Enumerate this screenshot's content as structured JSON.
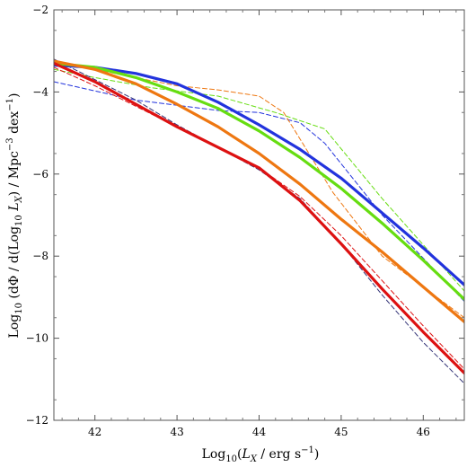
{
  "chart_data": {
    "type": "line",
    "title": "",
    "xlabel": "Log10(LX / erg s−1)",
    "ylabel": "Log10 (dΦ / d(Log10 LX) / Mpc−3 dex−1)",
    "xlim": [
      41.5,
      46.5
    ],
    "ylim": [
      -12,
      -2
    ],
    "xticks": [
      42,
      43,
      44,
      45,
      46
    ],
    "yticks": [
      -12,
      -10,
      -8,
      -6,
      -4,
      -2
    ],
    "grid": false,
    "legend": "none",
    "series": [
      {
        "color": "#2233dd",
        "style": "solid",
        "x": [
          41.5,
          42.0,
          42.5,
          43.0,
          43.5,
          44.0,
          44.5,
          45.0,
          45.5,
          46.0,
          46.5
        ],
        "y": [
          -3.35,
          -3.4,
          -3.55,
          -3.8,
          -4.25,
          -4.8,
          -5.4,
          -6.1,
          -6.95,
          -7.8,
          -8.7
        ]
      },
      {
        "color": "#66dd11",
        "style": "solid",
        "x": [
          41.5,
          42.0,
          42.5,
          43.0,
          43.5,
          44.0,
          44.5,
          45.0,
          45.5,
          46.0,
          46.5
        ],
        "y": [
          -3.3,
          -3.4,
          -3.65,
          -4.0,
          -4.4,
          -4.95,
          -5.6,
          -6.35,
          -7.2,
          -8.1,
          -9.05
        ]
      },
      {
        "color": "#ee7711",
        "style": "solid",
        "x": [
          41.5,
          42.0,
          42.5,
          43.0,
          43.5,
          44.0,
          44.5,
          45.0,
          45.5,
          46.0,
          46.5
        ],
        "y": [
          -3.25,
          -3.45,
          -3.8,
          -4.3,
          -4.85,
          -5.5,
          -6.25,
          -7.1,
          -7.9,
          -8.75,
          -9.6
        ]
      },
      {
        "color": "#dd1111",
        "style": "solid",
        "x": [
          41.5,
          42.0,
          42.5,
          43.0,
          43.5,
          44.0,
          44.5,
          45.0,
          45.5,
          46.0,
          46.5
        ],
        "y": [
          -3.3,
          -3.75,
          -4.3,
          -4.85,
          -5.35,
          -5.85,
          -6.65,
          -7.7,
          -8.8,
          -9.85,
          -10.85
        ]
      },
      {
        "color": "#2233dd",
        "style": "dashed",
        "x": [
          41.5,
          42.5,
          43.5,
          44.0,
          44.5,
          44.8,
          45.5,
          46.5
        ],
        "y": [
          -3.75,
          -4.2,
          -4.45,
          -4.5,
          -4.75,
          -5.25,
          -7.0,
          -9.1
        ]
      },
      {
        "color": "#66dd11",
        "style": "dashed",
        "x": [
          41.5,
          42.0,
          42.7,
          43.5,
          44.2,
          44.8,
          45.5,
          46.5
        ],
        "y": [
          -3.45,
          -3.65,
          -3.9,
          -4.1,
          -4.5,
          -4.9,
          -6.6,
          -8.85
        ]
      },
      {
        "color": "#ee7711",
        "style": "dashed",
        "x": [
          41.5,
          42.0,
          42.5,
          43.0,
          43.5,
          44.0,
          44.3,
          44.9,
          45.5,
          46.5
        ],
        "y": [
          -3.3,
          -3.45,
          -3.65,
          -3.85,
          -3.95,
          -4.1,
          -4.5,
          -6.45,
          -8.0,
          -9.5
        ]
      },
      {
        "color": "#333377",
        "style": "dashed",
        "x": [
          41.5,
          42.5,
          43.0,
          43.5,
          44.0,
          44.5,
          45.0,
          45.5,
          46.0,
          46.5
        ],
        "y": [
          -3.2,
          -4.2,
          -4.8,
          -5.35,
          -5.9,
          -6.6,
          -7.7,
          -8.95,
          -10.1,
          -11.1
        ]
      },
      {
        "color": "#dd1111",
        "style": "dashed",
        "x": [
          41.5,
          42.0,
          42.5,
          43.0,
          43.5,
          44.0,
          44.5,
          45.0,
          45.5,
          46.0,
          46.5
        ],
        "y": [
          -3.4,
          -3.85,
          -4.35,
          -4.85,
          -5.35,
          -5.85,
          -6.55,
          -7.5,
          -8.6,
          -9.7,
          -10.75
        ]
      }
    ]
  }
}
